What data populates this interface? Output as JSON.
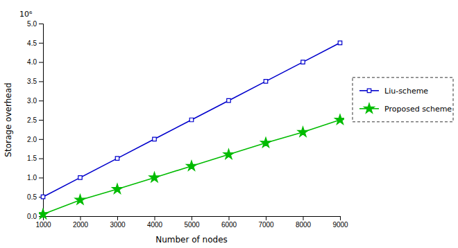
{
  "chart_data": {
    "type": "line",
    "x": [
      1000,
      2000,
      3000,
      4000,
      5000,
      6000,
      7000,
      8000,
      9000
    ],
    "series": [
      {
        "name": "Liu-scheme",
        "color": "#0000CC",
        "marker": "square",
        "values": [
          0.5,
          1.0,
          1.5,
          2.0,
          2.5,
          3.0,
          3.5,
          4.0,
          4.5
        ]
      },
      {
        "name": "Proposed scheme",
        "color": "#00BB00",
        "marker": "star",
        "values": [
          0.05,
          0.42,
          0.7,
          1.0,
          1.3,
          1.6,
          1.9,
          2.18,
          2.5
        ]
      }
    ],
    "x_label": "Number of nodes",
    "y_label": "Storage overhead",
    "annotation": "10⁶",
    "xlim": [
      1000,
      9000
    ],
    "ylim": [
      0,
      5
    ],
    "xticks": [
      1000,
      2000,
      3000,
      4000,
      5000,
      6000,
      7000,
      8000,
      9000
    ],
    "yticks": [
      {
        "value": 0,
        "label": "0.0"
      },
      0.5,
      {
        "value": 1.0,
        "label": "1.0"
      },
      1.5,
      {
        "value": 2.0,
        "label": "2.0"
      },
      2.5,
      {
        "value": 3.0,
        "label": "3.0"
      },
      3.5,
      {
        "value": 4.0,
        "label": "4.0"
      },
      4.5,
      {
        "value": 5.0,
        "label": "5.0"
      }
    ],
    "grid": false,
    "legend": "right"
  }
}
